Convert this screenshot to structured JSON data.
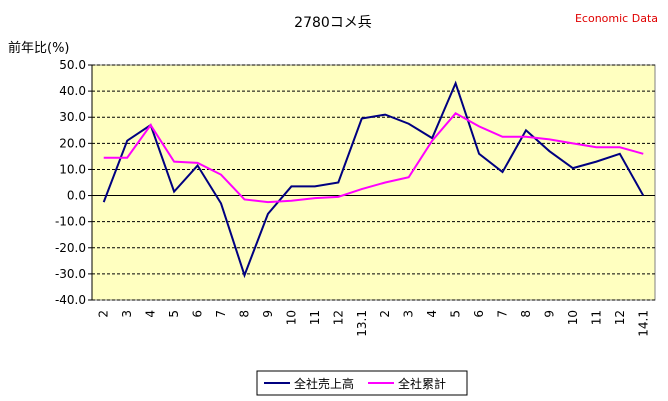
{
  "chart_data": {
    "type": "line",
    "title": "2780コメ兵",
    "source": "Economic Data",
    "y_label": "前年比(%)",
    "categories": [
      "2",
      "3",
      "4",
      "5",
      "6",
      "7",
      "8",
      "9",
      "10",
      "11",
      "12",
      "13.1",
      "2",
      "3",
      "4",
      "5",
      "6",
      "7",
      "8",
      "9",
      "10",
      "11",
      "12",
      "14.1"
    ],
    "series": [
      {
        "name": "全社売上高",
        "color": "#000080",
        "values": [
          -2.5,
          21,
          27,
          1.5,
          11.5,
          -3,
          -30.5,
          -7,
          3.5,
          3.5,
          5,
          29.5,
          31,
          27.5,
          22,
          43,
          16,
          9,
          25,
          17,
          10.5,
          13,
          16,
          0
        ]
      },
      {
        "name": "全社累計",
        "color": "#ff00ff",
        "values": [
          14.5,
          14.5,
          27,
          13,
          12.5,
          8,
          -1.5,
          -2.5,
          -2,
          -1,
          -0.5,
          2.5,
          5,
          7,
          21,
          31.5,
          26.5,
          22.5,
          22.5,
          21.5,
          20,
          18.5,
          18.5,
          16
        ]
      }
    ],
    "ylim": [
      -40,
      50
    ],
    "yticks": [
      {
        "value": -40,
        "label": "-40.0"
      },
      {
        "value": -30,
        "label": "-30.0"
      },
      {
        "value": -20,
        "label": "-20.0"
      },
      {
        "value": -10,
        "label": "-10.0"
      },
      {
        "value": 0,
        "label": "0.0"
      },
      {
        "value": 10,
        "label": "10.0"
      },
      {
        "value": 20,
        "label": "20.0"
      },
      {
        "value": 30,
        "label": "30.0"
      },
      {
        "value": 40,
        "label": "40.0"
      },
      {
        "value": 50,
        "label": "50.0"
      }
    ],
    "grid": true,
    "background": "#ffffc0"
  }
}
